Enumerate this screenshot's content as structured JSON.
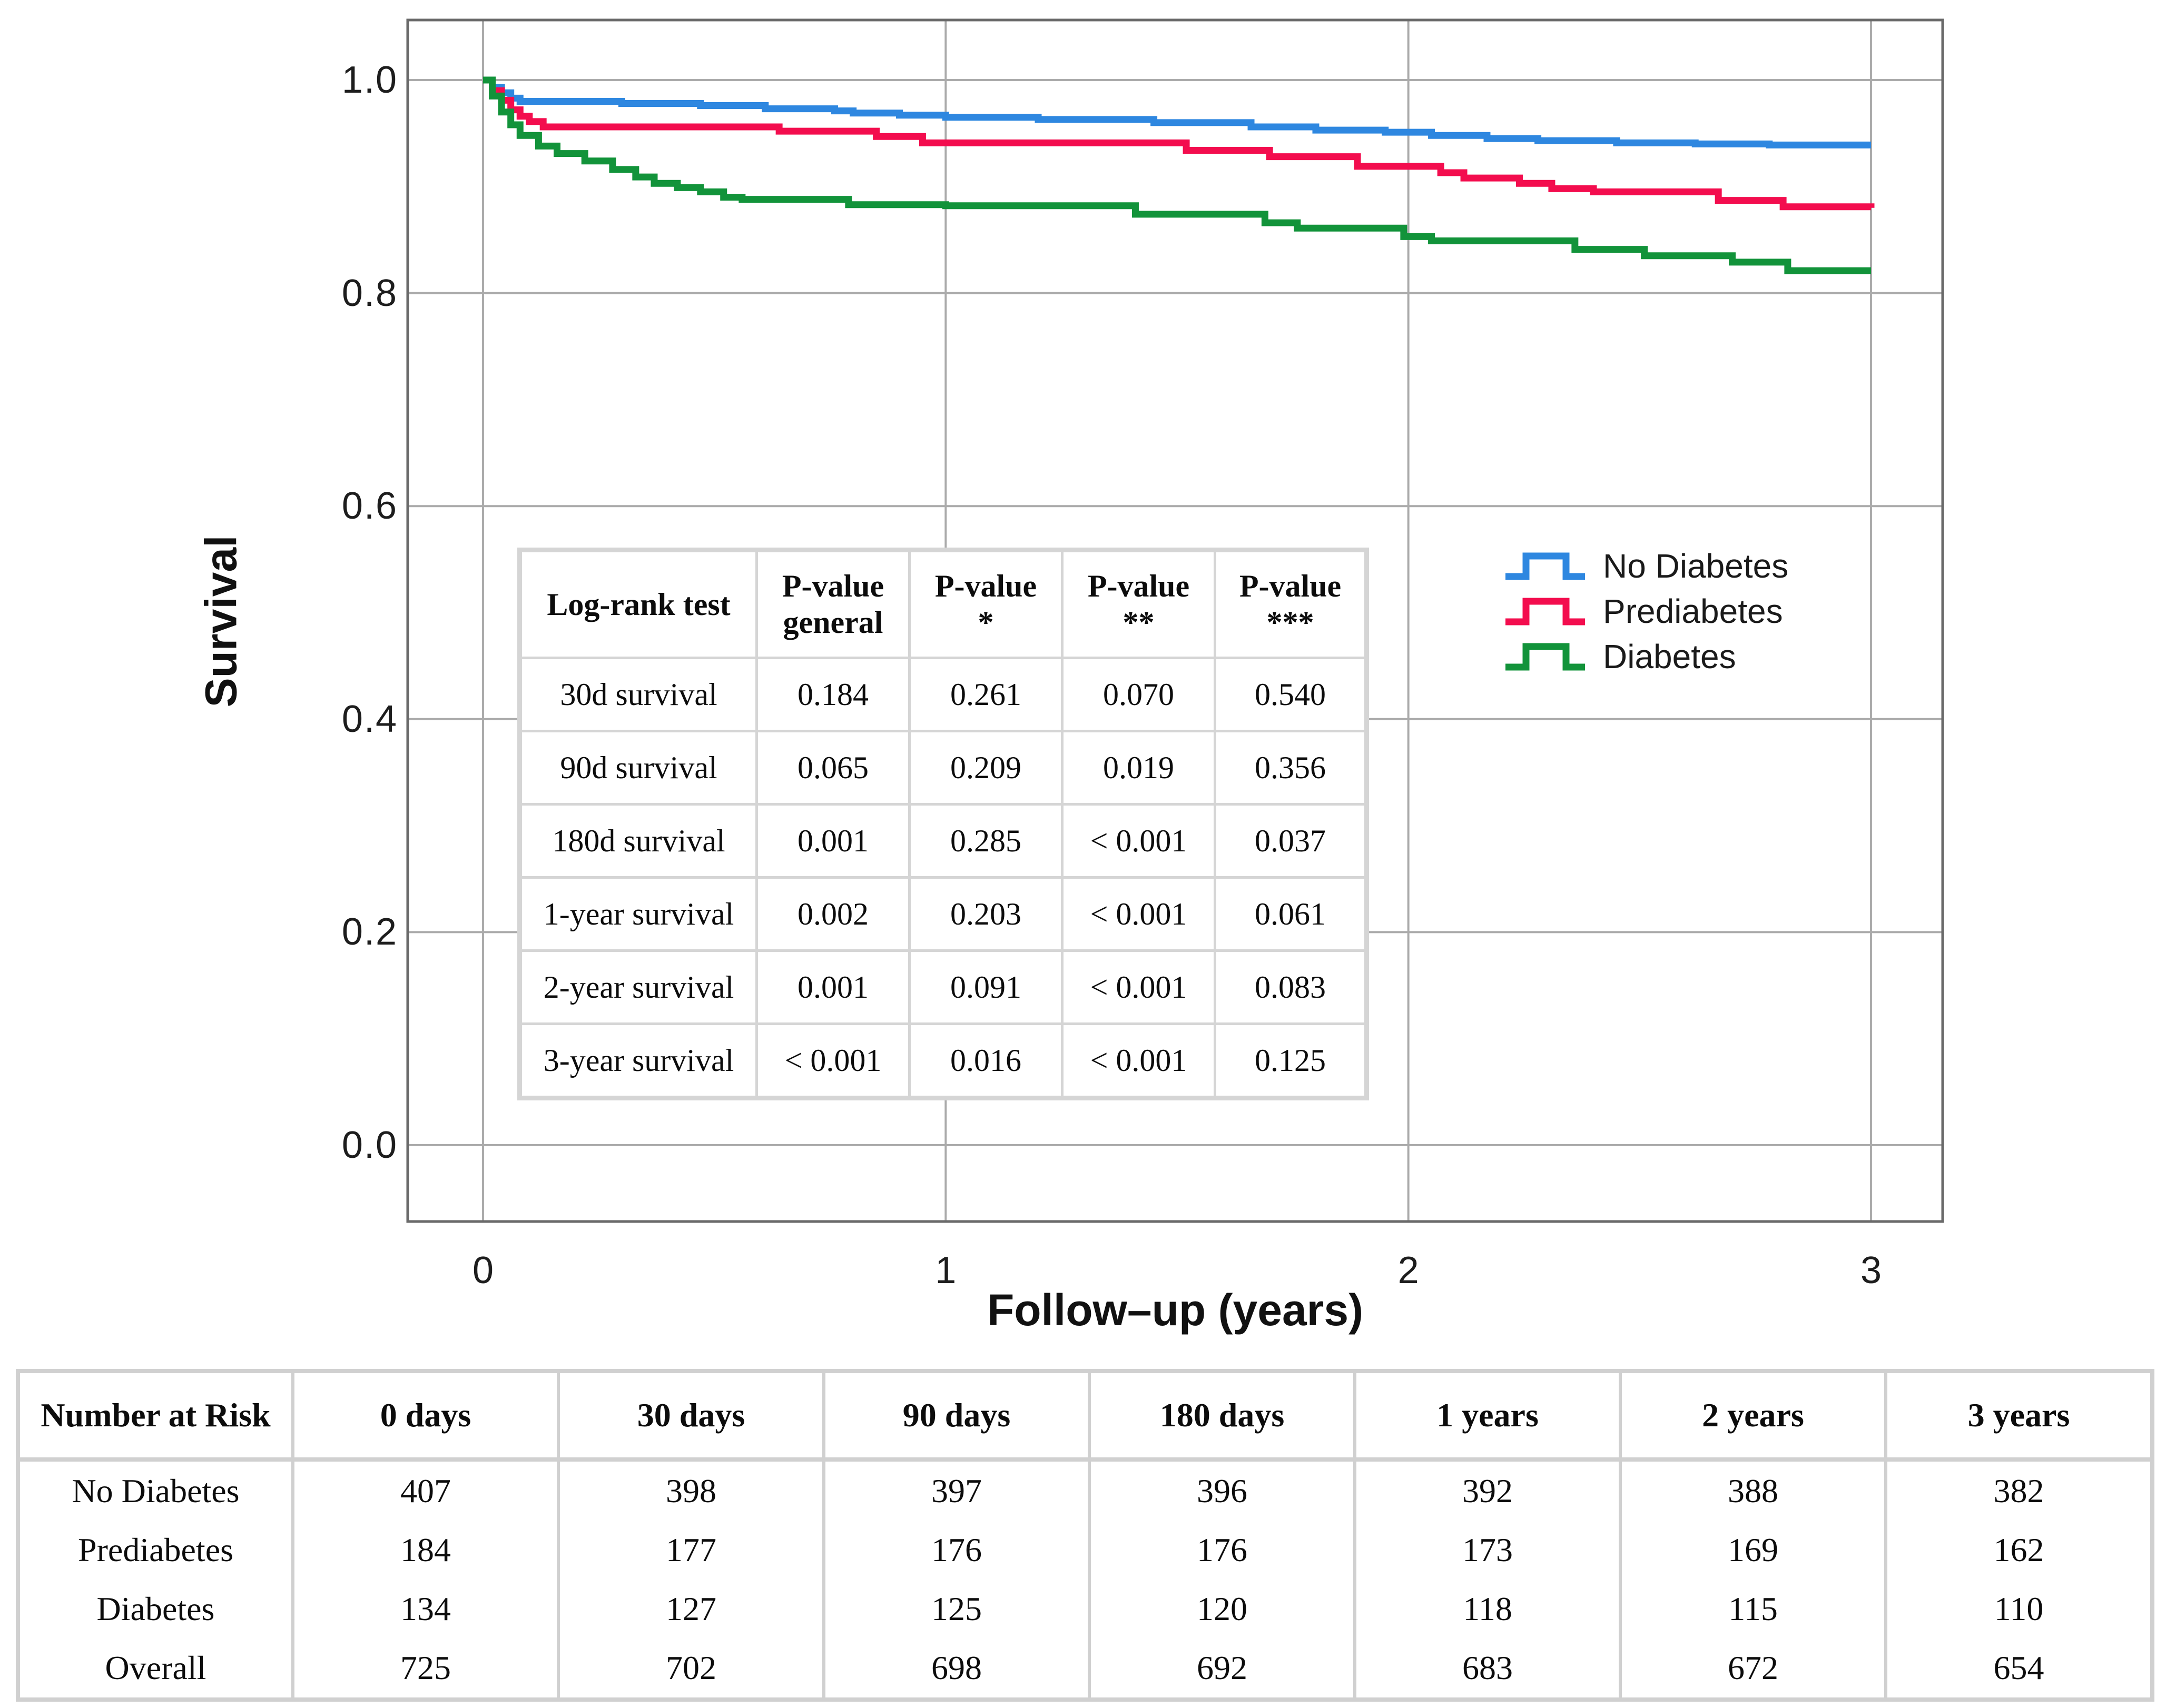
{
  "figure": {
    "xlabel": "Follow–up (years)",
    "ylabel": "Survival"
  },
  "chart_data": {
    "type": "line",
    "subtype": "kaplan-meier-step-curves",
    "title": "",
    "xlabel": "Follow–up (years)",
    "ylabel": "Survival",
    "xlim": [
      -0.17,
      3.16
    ],
    "ylim": [
      -0.07,
      1.06
    ],
    "grid": true,
    "legend_position": "right-middle",
    "x_ticks": [
      {
        "label": "0",
        "value": 0
      },
      {
        "label": "1",
        "value": 1
      },
      {
        "label": "2",
        "value": 2
      },
      {
        "label": "3",
        "value": 3
      }
    ],
    "y_ticks": [
      {
        "label": "1.0",
        "value": 1.0
      },
      {
        "label": "0.8",
        "value": 0.8
      },
      {
        "label": "0.6",
        "value": 0.6
      },
      {
        "label": "0.4",
        "value": 0.4
      },
      {
        "label": "0.2",
        "value": 0.2
      },
      {
        "label": "0.0",
        "value": 0.0
      }
    ],
    "series": [
      {
        "name": "No Diabetes",
        "color": "#2E87E0",
        "steps": [
          [
            0,
            1.0
          ],
          [
            0.02,
            0.993
          ],
          [
            0.04,
            0.988
          ],
          [
            0.06,
            0.983
          ],
          [
            0.08,
            0.98
          ],
          [
            0.3,
            0.978
          ],
          [
            0.47,
            0.976
          ],
          [
            0.61,
            0.973
          ],
          [
            0.76,
            0.971
          ],
          [
            0.8,
            0.969
          ],
          [
            0.9,
            0.967
          ],
          [
            1.0,
            0.965
          ],
          [
            1.2,
            0.963
          ],
          [
            1.45,
            0.96
          ],
          [
            1.66,
            0.956
          ],
          [
            1.8,
            0.953
          ],
          [
            1.95,
            0.951
          ],
          [
            2.05,
            0.948
          ],
          [
            2.17,
            0.945
          ],
          [
            2.28,
            0.943
          ],
          [
            2.45,
            0.941
          ],
          [
            2.62,
            0.94
          ],
          [
            2.78,
            0.939
          ],
          [
            3.0,
            0.939
          ]
        ]
      },
      {
        "name": "Prediabetes",
        "color": "#F30D4E",
        "steps": [
          [
            0,
            1.0
          ],
          [
            0.02,
            0.99
          ],
          [
            0.04,
            0.981
          ],
          [
            0.06,
            0.972
          ],
          [
            0.08,
            0.966
          ],
          [
            0.1,
            0.961
          ],
          [
            0.13,
            0.956
          ],
          [
            0.64,
            0.952
          ],
          [
            0.85,
            0.947
          ],
          [
            0.95,
            0.941
          ],
          [
            1.52,
            0.934
          ],
          [
            1.7,
            0.928
          ],
          [
            1.89,
            0.919
          ],
          [
            2.07,
            0.913
          ],
          [
            2.12,
            0.908
          ],
          [
            2.24,
            0.903
          ],
          [
            2.31,
            0.898
          ],
          [
            2.4,
            0.895
          ],
          [
            2.67,
            0.887
          ],
          [
            2.81,
            0.881
          ],
          [
            3.0,
            0.88
          ]
        ]
      },
      {
        "name": "Diabetes",
        "color": "#12933A",
        "steps": [
          [
            0,
            1.0
          ],
          [
            0.02,
            0.985
          ],
          [
            0.04,
            0.97
          ],
          [
            0.06,
            0.958
          ],
          [
            0.08,
            0.948
          ],
          [
            0.12,
            0.938
          ],
          [
            0.16,
            0.931
          ],
          [
            0.22,
            0.924
          ],
          [
            0.28,
            0.916
          ],
          [
            0.33,
            0.909
          ],
          [
            0.37,
            0.903
          ],
          [
            0.42,
            0.899
          ],
          [
            0.47,
            0.895
          ],
          [
            0.52,
            0.89
          ],
          [
            0.56,
            0.888
          ],
          [
            0.79,
            0.883
          ],
          [
            1.0,
            0.882
          ],
          [
            1.41,
            0.874
          ],
          [
            1.69,
            0.866
          ],
          [
            1.76,
            0.861
          ],
          [
            1.99,
            0.853
          ],
          [
            2.05,
            0.849
          ],
          [
            2.36,
            0.841
          ],
          [
            2.51,
            0.835
          ],
          [
            2.7,
            0.829
          ],
          [
            2.82,
            0.821
          ],
          [
            3.0,
            0.821
          ]
        ]
      }
    ],
    "colors": {
      "gridline": "#ABABAB",
      "frame": "#6A6A6A",
      "table_border": "#D2D2D2"
    }
  },
  "logrank_table": {
    "headers": [
      "Log-rank test",
      "P-value\ngeneral",
      "P-value\n*",
      "P-value\n**",
      "P-value\n***"
    ],
    "rows": [
      [
        "30d survival",
        "0.184",
        "0.261",
        "0.070",
        "0.540"
      ],
      [
        "90d survival",
        "0.065",
        "0.209",
        "0.019",
        "0.356"
      ],
      [
        "180d survival",
        "0.001",
        "0.285",
        "< 0.001",
        "0.037"
      ],
      [
        "1-year survival",
        "0.002",
        "0.203",
        "< 0.001",
        "0.061"
      ],
      [
        "2-year survival",
        "0.001",
        "0.091",
        "< 0.001",
        "0.083"
      ],
      [
        "3-year survival",
        "< 0.001",
        "0.016",
        "< 0.001",
        "0.125"
      ]
    ]
  },
  "risk_table": {
    "headers": [
      "Number at Risk",
      "0 days",
      "30 days",
      "90 days",
      "180 days",
      "1 years",
      "2 years",
      "3 years"
    ],
    "rows": [
      [
        "No Diabetes",
        "407",
        "398",
        "397",
        "396",
        "392",
        "388",
        "382"
      ],
      [
        "Prediabetes",
        "184",
        "177",
        "176",
        "176",
        "173",
        "169",
        "162"
      ],
      [
        "Diabetes",
        "134",
        "127",
        "125",
        "120",
        "118",
        "115",
        "110"
      ],
      [
        "Overall",
        "725",
        "702",
        "698",
        "692",
        "683",
        "672",
        "654"
      ]
    ]
  }
}
